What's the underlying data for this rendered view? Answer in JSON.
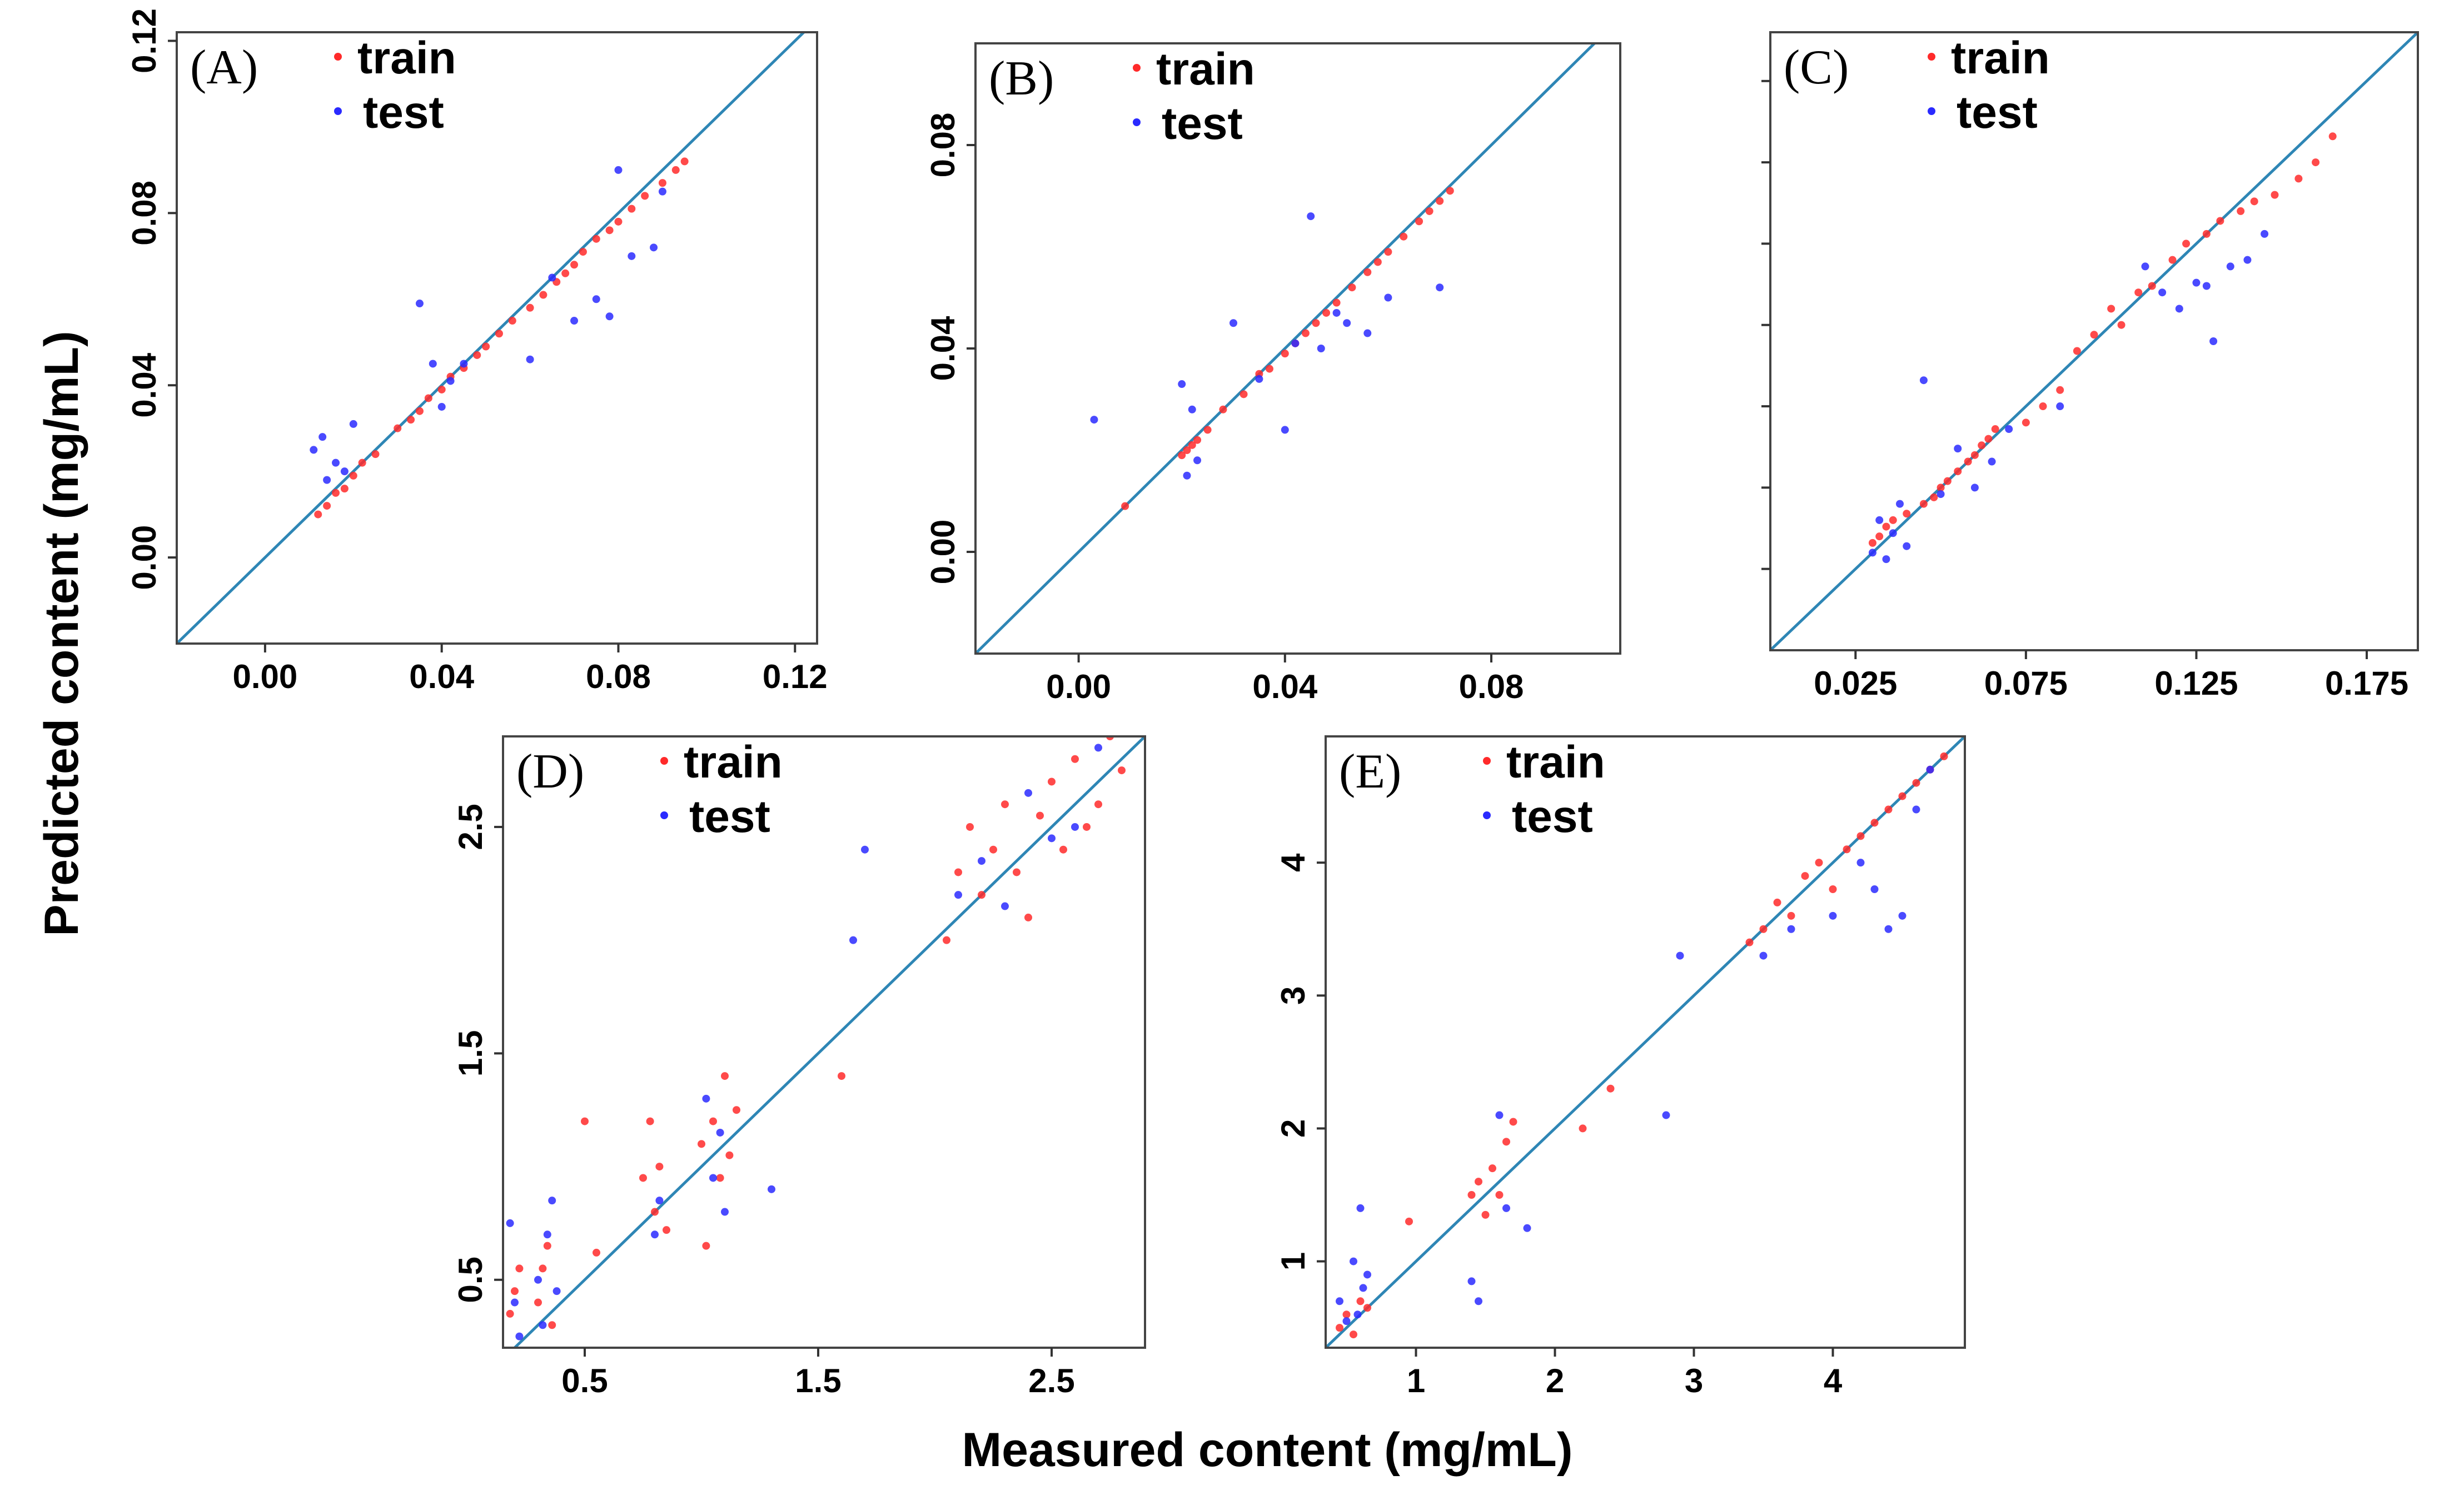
{
  "figure": {
    "ylabel": "Predicted  content (mg/mL)",
    "xlabel": "Measured content (mg/mL)",
    "colors": {
      "train": "#ff2a2a",
      "test": "#2a2aff",
      "line": "#2e86b5",
      "frame": "#444444"
    }
  },
  "chart_data": [
    {
      "panel": "(A)",
      "type": "scatter",
      "xlim": [
        -0.02,
        0.125
      ],
      "ylim": [
        -0.02,
        0.122
      ],
      "xticks": [
        0.0,
        0.04,
        0.08,
        0.12
      ],
      "xtick_labels": [
        "0.00",
        "0.04",
        "0.08",
        "0.12"
      ],
      "yticks": [
        0.0,
        0.04,
        0.08,
        0.12
      ],
      "ytick_labels": [
        "0.00",
        "0.04",
        "0.08",
        "0.12"
      ],
      "grid": false,
      "legend": "top-left",
      "series": [
        {
          "name": "train",
          "color": "#ff2a2a",
          "x": [
            0.012,
            0.014,
            0.016,
            0.018,
            0.02,
            0.022,
            0.025,
            0.03,
            0.033,
            0.035,
            0.037,
            0.04,
            0.042,
            0.045,
            0.048,
            0.05,
            0.053,
            0.056,
            0.06,
            0.063,
            0.066,
            0.068,
            0.07,
            0.072,
            0.075,
            0.078,
            0.08,
            0.083,
            0.086,
            0.09,
            0.093,
            0.095
          ],
          "y": [
            0.01,
            0.012,
            0.015,
            0.016,
            0.019,
            0.022,
            0.024,
            0.03,
            0.032,
            0.034,
            0.037,
            0.039,
            0.042,
            0.044,
            0.047,
            0.049,
            0.052,
            0.055,
            0.058,
            0.061,
            0.064,
            0.066,
            0.068,
            0.071,
            0.074,
            0.076,
            0.078,
            0.081,
            0.084,
            0.087,
            0.09,
            0.092
          ]
        },
        {
          "name": "test",
          "color": "#2a2aff",
          "x": [
            0.011,
            0.013,
            0.014,
            0.016,
            0.018,
            0.02,
            0.035,
            0.038,
            0.04,
            0.042,
            0.045,
            0.06,
            0.065,
            0.07,
            0.075,
            0.078,
            0.08,
            0.083,
            0.088,
            0.09
          ],
          "y": [
            0.025,
            0.028,
            0.018,
            0.022,
            0.02,
            0.031,
            0.059,
            0.045,
            0.035,
            0.041,
            0.045,
            0.046,
            0.065,
            0.055,
            0.06,
            0.056,
            0.09,
            0.07,
            0.072,
            0.085
          ]
        }
      ]
    },
    {
      "panel": "(B)",
      "type": "scatter",
      "xlim": [
        -0.02,
        0.105
      ],
      "ylim": [
        -0.02,
        0.1
      ],
      "xticks": [
        0.0,
        0.04,
        0.08
      ],
      "xtick_labels": [
        "0.00",
        "0.04",
        "0.08"
      ],
      "yticks": [
        0.0,
        0.04,
        0.08
      ],
      "ytick_labels": [
        "0.00",
        "0.04",
        "0.08"
      ],
      "grid": false,
      "legend": "top-left",
      "series": [
        {
          "name": "train",
          "color": "#ff2a2a",
          "x": [
            0.009,
            0.02,
            0.021,
            0.022,
            0.023,
            0.025,
            0.028,
            0.032,
            0.035,
            0.037,
            0.04,
            0.042,
            0.044,
            0.046,
            0.048,
            0.05,
            0.053,
            0.056,
            0.058,
            0.06,
            0.063,
            0.066,
            0.068,
            0.07,
            0.072
          ],
          "y": [
            0.009,
            0.019,
            0.02,
            0.021,
            0.022,
            0.024,
            0.028,
            0.031,
            0.035,
            0.036,
            0.039,
            0.041,
            0.043,
            0.045,
            0.047,
            0.049,
            0.052,
            0.055,
            0.057,
            0.059,
            0.062,
            0.065,
            0.067,
            0.069,
            0.071
          ]
        },
        {
          "name": "test",
          "color": "#2a2aff",
          "x": [
            0.003,
            0.02,
            0.021,
            0.022,
            0.023,
            0.03,
            0.035,
            0.04,
            0.042,
            0.045,
            0.047,
            0.05,
            0.052,
            0.056,
            0.06,
            0.07
          ],
          "y": [
            0.026,
            0.033,
            0.015,
            0.028,
            0.018,
            0.045,
            0.034,
            0.024,
            0.041,
            0.066,
            0.04,
            0.047,
            0.045,
            0.043,
            0.05,
            0.052
          ]
        }
      ]
    },
    {
      "panel": "(C)",
      "type": "scatter",
      "xlim": [
        0.0,
        0.19
      ],
      "ylim": [
        0.0,
        0.19
      ],
      "xticks": [
        0.025,
        0.075,
        0.125,
        0.175
      ],
      "xtick_labels": [
        "0.025",
        "0.075",
        "0.125",
        "0.175"
      ],
      "yticks": [
        0.025,
        0.05,
        0.075,
        0.1,
        0.125,
        0.15,
        0.175
      ],
      "ytick_labels": [],
      "grid": false,
      "legend": "top-left",
      "series": [
        {
          "name": "train",
          "color": "#ff2a2a",
          "x": [
            0.03,
            0.032,
            0.034,
            0.036,
            0.04,
            0.045,
            0.048,
            0.05,
            0.052,
            0.055,
            0.058,
            0.06,
            0.062,
            0.064,
            0.066,
            0.075,
            0.08,
            0.085,
            0.09,
            0.095,
            0.1,
            0.103,
            0.108,
            0.112,
            0.118,
            0.122,
            0.128,
            0.132,
            0.138,
            0.142,
            0.148,
            0.155,
            0.16,
            0.165
          ],
          "y": [
            0.033,
            0.035,
            0.038,
            0.04,
            0.042,
            0.045,
            0.047,
            0.05,
            0.052,
            0.055,
            0.058,
            0.06,
            0.063,
            0.065,
            0.068,
            0.07,
            0.075,
            0.08,
            0.092,
            0.097,
            0.105,
            0.1,
            0.11,
            0.112,
            0.12,
            0.125,
            0.128,
            0.132,
            0.135,
            0.138,
            0.14,
            0.145,
            0.15,
            0.158
          ]
        },
        {
          "name": "test",
          "color": "#2a2aff",
          "x": [
            0.03,
            0.032,
            0.034,
            0.036,
            0.038,
            0.04,
            0.045,
            0.05,
            0.055,
            0.06,
            0.065,
            0.07,
            0.085,
            0.11,
            0.115,
            0.12,
            0.125,
            0.128,
            0.13,
            0.135,
            0.14,
            0.145
          ],
          "y": [
            0.03,
            0.04,
            0.028,
            0.036,
            0.045,
            0.032,
            0.083,
            0.048,
            0.062,
            0.05,
            0.058,
            0.068,
            0.075,
            0.118,
            0.11,
            0.105,
            0.113,
            0.112,
            0.095,
            0.118,
            0.12,
            0.128
          ]
        }
      ]
    },
    {
      "panel": "(D)",
      "type": "scatter",
      "xlim": [
        0.15,
        2.9
      ],
      "ylim": [
        0.2,
        2.9
      ],
      "xticks": [
        0.5,
        1.5,
        2.5
      ],
      "xtick_labels": [
        "0.5",
        "1.5",
        "2.5"
      ],
      "yticks": [
        0.5,
        1.5,
        2.5
      ],
      "ytick_labels": [
        "0.5",
        "1.5",
        "2.5"
      ],
      "grid": false,
      "legend": "top-left",
      "series": [
        {
          "name": "train",
          "color": "#ff2a2a",
          "x": [
            0.18,
            0.2,
            0.22,
            0.3,
            0.32,
            0.34,
            0.36,
            0.5,
            0.55,
            0.75,
            0.78,
            0.8,
            0.82,
            0.85,
            1.0,
            1.02,
            1.05,
            1.08,
            1.1,
            1.12,
            1.15,
            1.6,
            2.05,
            2.1,
            2.15,
            2.2,
            2.25,
            2.3,
            2.35,
            2.4,
            2.45,
            2.5,
            2.55,
            2.6,
            2.65,
            2.7,
            2.75,
            2.8
          ],
          "y": [
            0.35,
            0.45,
            0.55,
            0.4,
            0.55,
            0.65,
            0.3,
            1.2,
            0.62,
            0.95,
            1.2,
            0.8,
            1.0,
            0.72,
            1.1,
            0.65,
            1.2,
            0.95,
            1.4,
            1.05,
            1.25,
            1.4,
            2.0,
            2.3,
            2.5,
            2.2,
            2.4,
            2.6,
            2.3,
            2.1,
            2.55,
            2.7,
            2.4,
            2.8,
            2.5,
            2.6,
            2.9,
            2.75
          ]
        },
        {
          "name": "test",
          "color": "#2a2aff",
          "x": [
            0.18,
            0.2,
            0.22,
            0.3,
            0.32,
            0.34,
            0.36,
            0.38,
            0.8,
            0.82,
            1.02,
            1.05,
            1.08,
            1.1,
            1.3,
            1.65,
            1.7,
            2.1,
            2.2,
            2.3,
            2.4,
            2.5,
            2.6,
            2.7
          ],
          "y": [
            0.75,
            0.4,
            0.25,
            0.5,
            0.3,
            0.7,
            0.85,
            0.45,
            0.7,
            0.85,
            1.3,
            0.95,
            1.15,
            0.8,
            0.9,
            2.0,
            2.4,
            2.2,
            2.35,
            2.15,
            2.65,
            2.45,
            2.5,
            2.85
          ]
        }
      ]
    },
    {
      "panel": "(E)",
      "type": "scatter",
      "xlim": [
        0.35,
        4.95
      ],
      "ylim": [
        0.35,
        4.95
      ],
      "xticks": [
        1,
        2,
        3,
        4
      ],
      "xtick_labels": [
        "1",
        "2",
        "3",
        "4"
      ],
      "yticks": [
        1,
        2,
        3,
        4
      ],
      "ytick_labels": [
        "1",
        "2",
        "3",
        "4"
      ],
      "grid": false,
      "legend": "top-left",
      "series": [
        {
          "name": "train",
          "color": "#ff2a2a",
          "x": [
            0.45,
            0.5,
            0.55,
            0.6,
            0.65,
            0.95,
            1.4,
            1.45,
            1.5,
            1.55,
            1.6,
            1.65,
            1.7,
            2.2,
            2.4,
            3.4,
            3.5,
            3.6,
            3.7,
            3.8,
            3.9,
            4.0,
            4.1,
            4.2,
            4.3,
            4.4,
            4.5,
            4.6,
            4.7,
            4.8
          ],
          "y": [
            0.5,
            0.6,
            0.45,
            0.7,
            0.65,
            1.3,
            1.5,
            1.6,
            1.35,
            1.7,
            1.5,
            1.9,
            2.05,
            2.0,
            2.3,
            3.4,
            3.5,
            3.7,
            3.6,
            3.9,
            4.0,
            3.8,
            4.1,
            4.2,
            4.3,
            4.4,
            4.5,
            4.6,
            4.7,
            4.8
          ]
        },
        {
          "name": "test",
          "color": "#2a2aff",
          "x": [
            0.45,
            0.5,
            0.55,
            0.58,
            0.6,
            0.62,
            0.65,
            1.4,
            1.45,
            1.6,
            1.65,
            1.8,
            2.8,
            2.9,
            3.5,
            3.7,
            4.0,
            4.2,
            4.3,
            4.4,
            4.5,
            4.6,
            4.7
          ],
          "y": [
            0.7,
            0.55,
            1.0,
            0.6,
            1.4,
            0.8,
            0.9,
            0.85,
            0.7,
            2.1,
            1.4,
            1.25,
            2.1,
            3.3,
            3.3,
            3.5,
            3.6,
            4.0,
            3.8,
            3.5,
            3.6,
            4.4,
            4.7
          ]
        }
      ]
    }
  ]
}
